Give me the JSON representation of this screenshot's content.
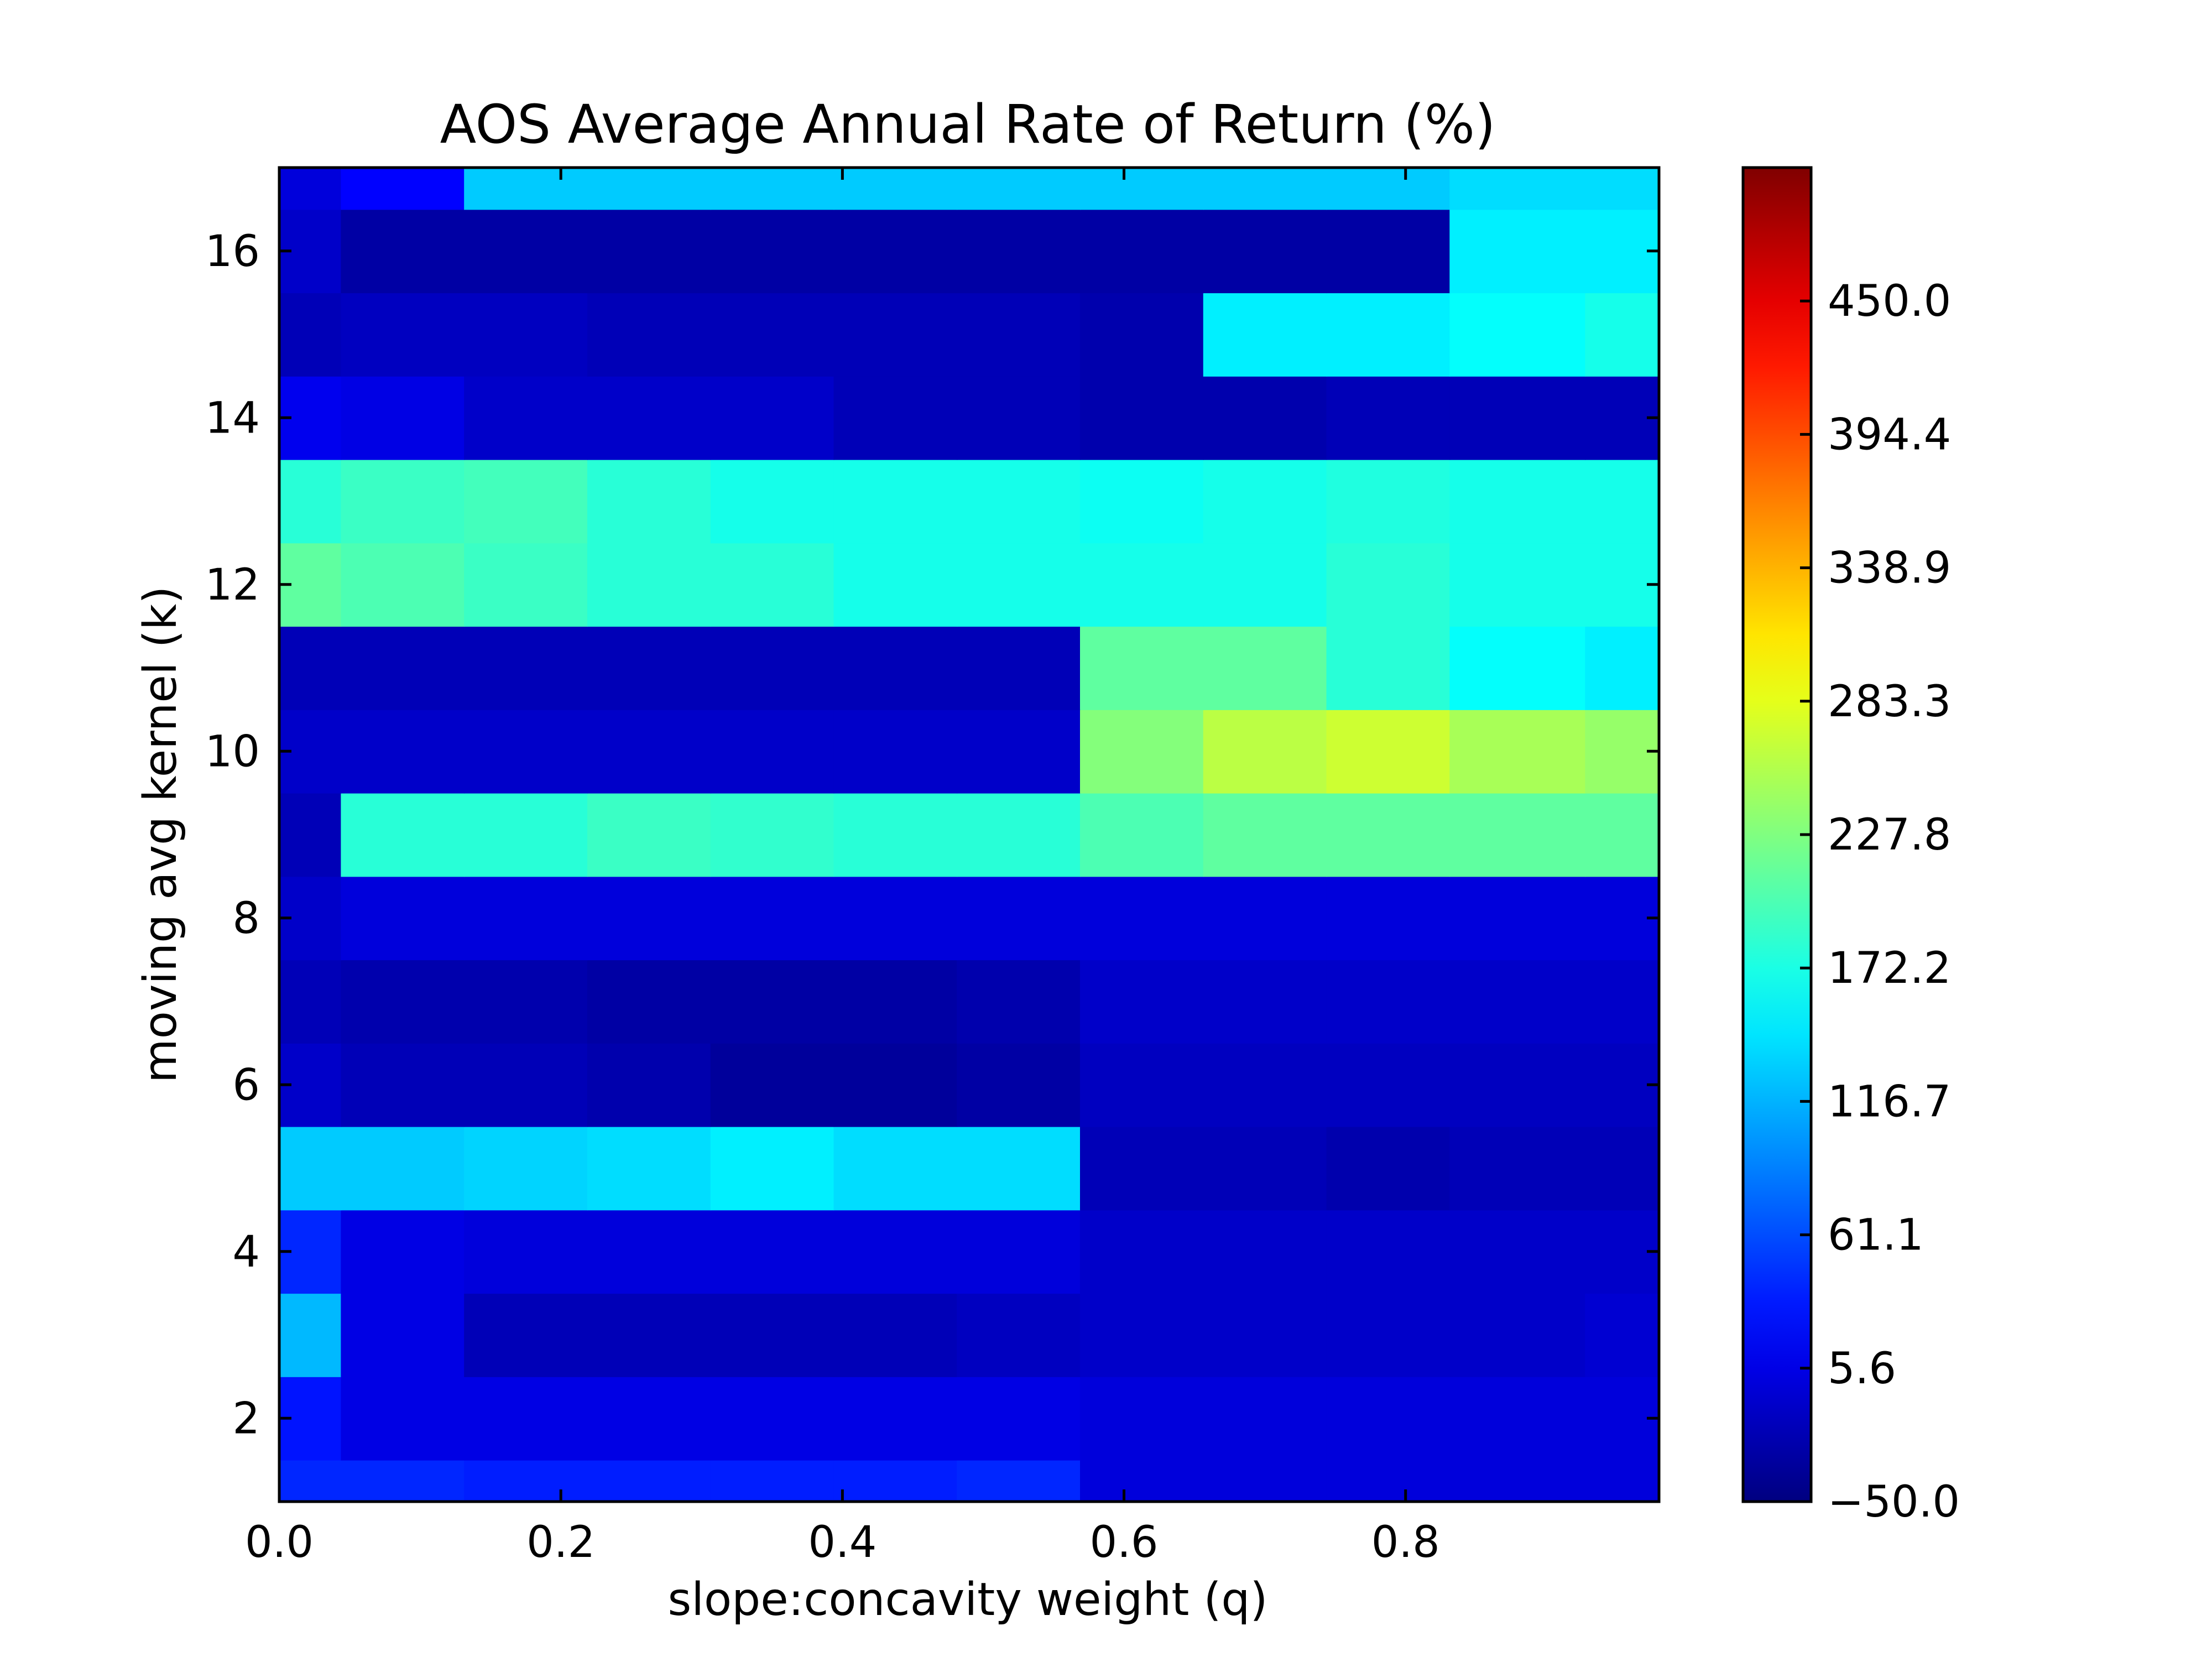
{
  "chart_data": {
    "type": "heatmap",
    "title": "AOS Average Annual Rate of Return (%)",
    "xlabel": "slope:concavity weight (q)",
    "ylabel": "moving avg kernel (k)",
    "xlim": [
      0.0,
      0.98
    ],
    "ylim": [
      1,
      17
    ],
    "x_ticks": [
      "0.0",
      "0.2",
      "0.4",
      "0.6",
      "0.8"
    ],
    "y_ticks": [
      "2",
      "4",
      "6",
      "8",
      "10",
      "12",
      "14",
      "16"
    ],
    "colorbar": {
      "colormap": "jet",
      "range": [
        -50.0,
        505.6
      ],
      "tick_labels": [
        "−50.0",
        "5.6",
        "61.1",
        "116.7",
        "172.2",
        "227.8",
        "283.3",
        "338.9",
        "394.4",
        "450.0"
      ]
    },
    "q_values": [
      0.0,
      0.0875,
      0.175,
      0.2625,
      0.35,
      0.4375,
      0.525,
      0.6125,
      0.7,
      0.7875,
      0.875,
      0.98
    ],
    "k_values": [
      1,
      2,
      3,
      4,
      5,
      6,
      7,
      8,
      9,
      10,
      11,
      12,
      13,
      14,
      15,
      16,
      17
    ],
    "z_rows": [
      [
        40,
        40,
        35,
        35,
        35,
        35,
        40,
        0,
        0,
        0,
        0,
        0
      ],
      [
        30,
        5,
        5,
        5,
        5,
        5,
        5,
        0,
        0,
        0,
        0,
        0
      ],
      [
        120,
        5,
        -20,
        -20,
        -20,
        -20,
        -15,
        -10,
        -10,
        -10,
        -10,
        -5
      ],
      [
        40,
        5,
        0,
        0,
        0,
        0,
        0,
        -10,
        -10,
        -10,
        -10,
        -10
      ],
      [
        130,
        130,
        135,
        140,
        150,
        140,
        140,
        -20,
        -20,
        -25,
        -20,
        -20
      ],
      [
        -10,
        -20,
        -20,
        -25,
        -35,
        -35,
        -30,
        -15,
        -15,
        -15,
        -15,
        -15
      ],
      [
        -20,
        -25,
        -25,
        -30,
        -30,
        -30,
        -25,
        -10,
        -10,
        -10,
        -10,
        -10
      ],
      [
        -10,
        0,
        0,
        0,
        0,
        0,
        0,
        0,
        0,
        0,
        0,
        0
      ],
      [
        -20,
        180,
        180,
        190,
        185,
        180,
        180,
        200,
        210,
        210,
        210,
        210
      ],
      [
        -10,
        -10,
        -10,
        -10,
        -10,
        -10,
        -10,
        230,
        260,
        270,
        250,
        240
      ],
      [
        -20,
        -20,
        -20,
        -20,
        -20,
        -20,
        -20,
        210,
        210,
        180,
        160,
        150
      ],
      [
        210,
        200,
        190,
        180,
        180,
        170,
        170,
        170,
        170,
        180,
        170,
        170
      ],
      [
        180,
        190,
        195,
        180,
        170,
        170,
        170,
        165,
        170,
        175,
        170,
        170
      ],
      [
        10,
        5,
        -10,
        -10,
        -10,
        -20,
        -20,
        -25,
        -25,
        -20,
        -20,
        -20
      ],
      [
        -20,
        -15,
        -15,
        -20,
        -20,
        -20,
        -20,
        -25,
        150,
        150,
        160,
        170
      ],
      [
        -10,
        -30,
        -30,
        -30,
        -30,
        -30,
        -30,
        -30,
        -30,
        -30,
        150,
        150
      ],
      [
        0,
        20,
        130,
        130,
        130,
        130,
        130,
        130,
        130,
        130,
        140,
        140
      ]
    ]
  }
}
